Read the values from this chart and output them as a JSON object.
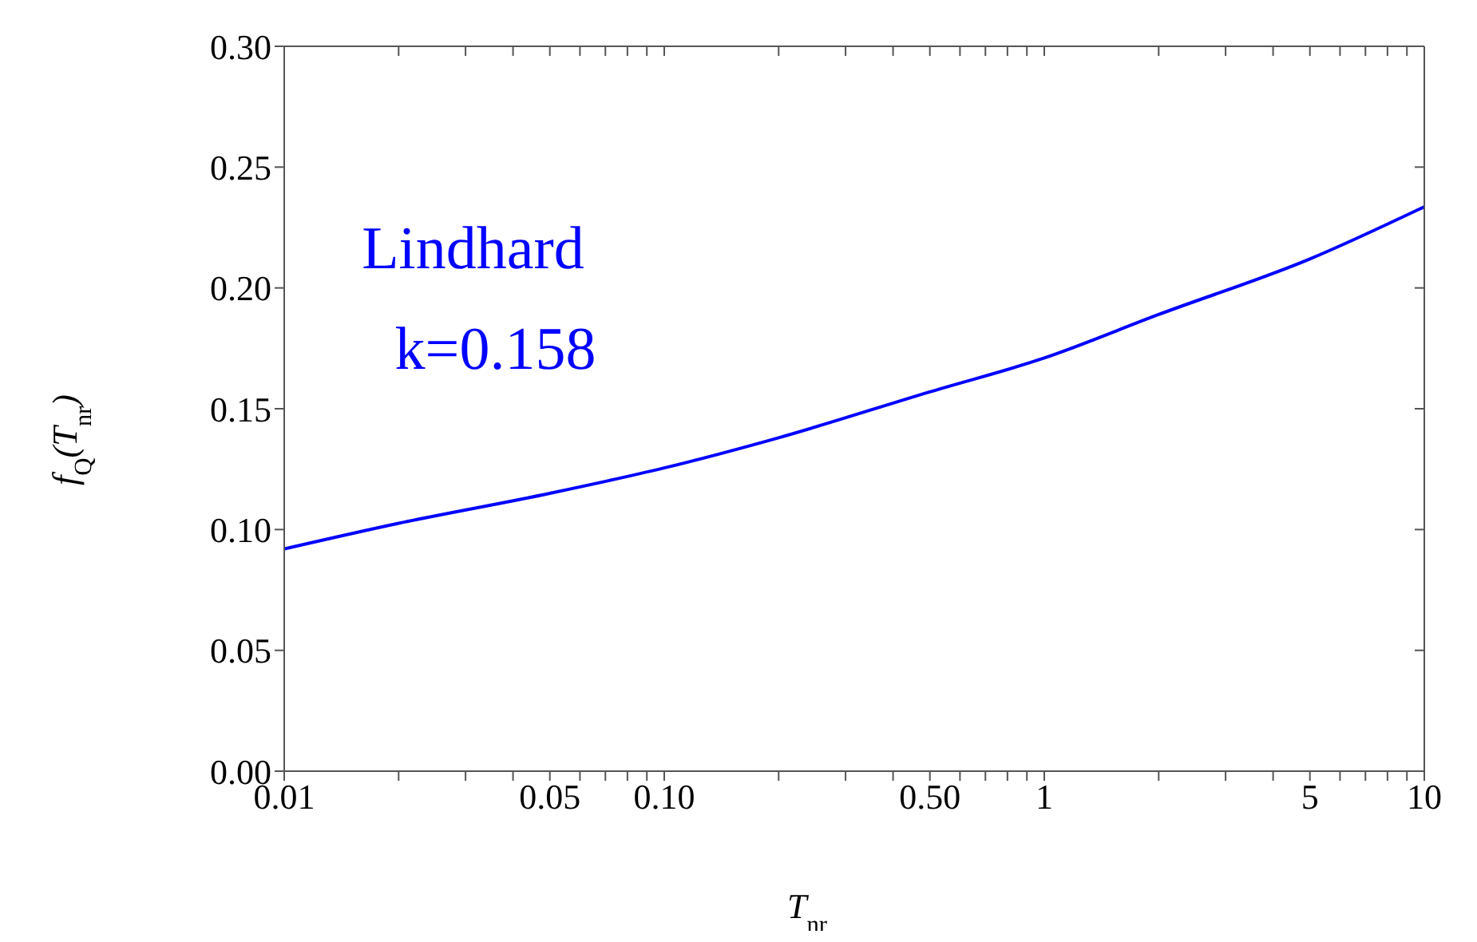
{
  "chart_data": {
    "type": "line",
    "xlabel": "T$_{nr}$",
    "ylabel": "f$_{Q}$(T$_{nr}$)",
    "annotations": [
      "Lindhard",
      "k=0.158"
    ],
    "x": [
      0.01,
      0.02,
      0.05,
      0.1,
      0.2,
      0.5,
      1,
      2,
      5,
      10
    ],
    "series": [
      {
        "color": "#0000ff",
        "values": [
          0.092,
          0.1026,
          0.115,
          0.1255,
          0.138,
          0.157,
          0.171,
          0.189,
          0.212,
          0.2336
        ]
      }
    ],
    "log": "x",
    "xlim": [
      0.01,
      10
    ],
    "ylim": [
      0,
      0.3
    ],
    "xticks": [
      {
        "value": 0.01,
        "label": "0.01"
      },
      {
        "value": 0.02,
        "label": null
      },
      {
        "value": 0.03,
        "label": null
      },
      {
        "value": 0.04,
        "label": null
      },
      {
        "value": 0.05,
        "label": "0.05"
      },
      {
        "value": 0.06,
        "label": null
      },
      {
        "value": 0.07,
        "label": null
      },
      {
        "value": 0.08,
        "label": null
      },
      {
        "value": 0.09,
        "label": null
      },
      {
        "value": 0.1,
        "label": "0.10"
      },
      {
        "value": 0.2,
        "label": null
      },
      {
        "value": 0.3,
        "label": null
      },
      {
        "value": 0.4,
        "label": null
      },
      {
        "value": 0.5,
        "label": "0.50"
      },
      {
        "value": 0.6,
        "label": null
      },
      {
        "value": 0.7,
        "label": null
      },
      {
        "value": 0.8,
        "label": null
      },
      {
        "value": 0.9,
        "label": null
      },
      1,
      {
        "value": 2,
        "label": null
      },
      {
        "value": 3,
        "label": null
      },
      {
        "value": 4,
        "label": null
      },
      5,
      {
        "value": 6,
        "label": null
      },
      {
        "value": 7,
        "label": null
      },
      {
        "value": 8,
        "label": null
      },
      {
        "value": 9,
        "label": null
      },
      10
    ],
    "yticks": [
      {
        "value": 0,
        "label": "0.00"
      },
      {
        "value": 0.05,
        "label": "0.05"
      },
      {
        "value": 0.1,
        "label": "0.10"
      },
      {
        "value": 0.15,
        "label": "0.15"
      },
      {
        "value": 0.2,
        "label": "0.20"
      },
      {
        "value": 0.25,
        "label": "0.25"
      },
      {
        "value": 0.3,
        "label": "0.30"
      }
    ],
    "grid": false,
    "legend": false,
    "marker": "none",
    "line_style": "solid"
  }
}
